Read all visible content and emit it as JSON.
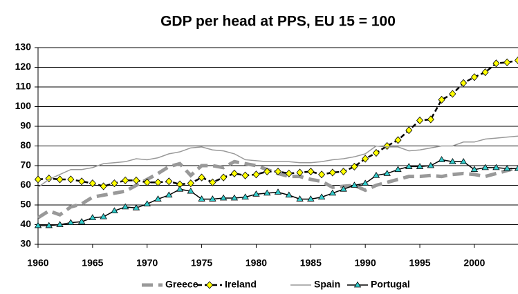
{
  "chart_data": {
    "type": "line",
    "title": "GDP per head at PPS, EU 15 = 100",
    "x": [
      1960,
      1961,
      1962,
      1963,
      1964,
      1965,
      1966,
      1967,
      1968,
      1969,
      1970,
      1971,
      1972,
      1973,
      1974,
      1975,
      1976,
      1977,
      1978,
      1979,
      1980,
      1981,
      1982,
      1983,
      1984,
      1985,
      1986,
      1987,
      1988,
      1989,
      1990,
      1991,
      1992,
      1993,
      1994,
      1995,
      1996,
      1997,
      1998,
      1999,
      2000,
      2001,
      2002,
      2003,
      2004
    ],
    "series": [
      {
        "name": "Greece",
        "color": "#999999",
        "dash": "dashed-thick",
        "marker": "none",
        "values": [
          43.5,
          47,
          45,
          49,
          50.5,
          54,
          55,
          56,
          57,
          60,
          63,
          66,
          69.5,
          71,
          65,
          70,
          70,
          69,
          72,
          71,
          70,
          68,
          66,
          64.5,
          64.5,
          63,
          62,
          59,
          59.5,
          60,
          57.5,
          60,
          61.5,
          63,
          64.5,
          64.5,
          65,
          64.5,
          65.5,
          66,
          65.5,
          64.5,
          66,
          67.5,
          69
        ]
      },
      {
        "name": "Ireland",
        "color": "#ffff00",
        "dash": "dashed",
        "marker": "diamond",
        "values": [
          63,
          63.5,
          63,
          63,
          62,
          61,
          59.5,
          61,
          62.5,
          62.5,
          61.5,
          61.5,
          62,
          60.5,
          61,
          64,
          61.5,
          64,
          66,
          65,
          65.5,
          67,
          67,
          66,
          66.5,
          67,
          65.5,
          66.5,
          67,
          69.5,
          73.5,
          76.5,
          80,
          83,
          88,
          93,
          93.5,
          103.5,
          106.5,
          112,
          115,
          117.5,
          122,
          122.5,
          123.5
        ]
      },
      {
        "name": "Spain",
        "color": "#999999",
        "dash": "solid",
        "marker": "none",
        "values": [
          59,
          63,
          65.5,
          68,
          68,
          69,
          71,
          71.5,
          72,
          73.5,
          73,
          74,
          76,
          77,
          79,
          79.5,
          78,
          77.5,
          76,
          73,
          72.5,
          72,
          72,
          72,
          71.5,
          71.5,
          72,
          73,
          73.5,
          74.5,
          76,
          80,
          79.5,
          79.5,
          77.5,
          78,
          79,
          80,
          80,
          82,
          82,
          83.5,
          84,
          84.5,
          85
        ]
      },
      {
        "name": "Portugal",
        "color": "#33cccc",
        "dash": "solid",
        "marker": "triangle",
        "values": [
          39.5,
          39.5,
          40,
          41,
          41.5,
          43.5,
          44,
          47,
          49,
          48.5,
          50.5,
          53,
          55,
          58,
          57,
          53,
          53,
          53.5,
          53.5,
          54,
          55.5,
          56,
          56.5,
          55,
          53,
          53,
          54,
          56,
          58,
          60,
          61,
          65,
          66,
          68,
          69.5,
          69.5,
          70,
          73,
          72,
          72,
          68,
          69,
          69,
          68.5,
          68.5
        ]
      }
    ],
    "xlim": [
      1960,
      2004
    ],
    "xticks": [
      1960,
      1965,
      1970,
      1975,
      1980,
      1985,
      1990,
      1995,
      2000
    ],
    "ylim": [
      30,
      130
    ],
    "yticks": [
      30,
      40,
      50,
      60,
      70,
      80,
      90,
      100,
      110,
      120,
      130
    ],
    "grid": true,
    "legend_position": "bottom"
  }
}
